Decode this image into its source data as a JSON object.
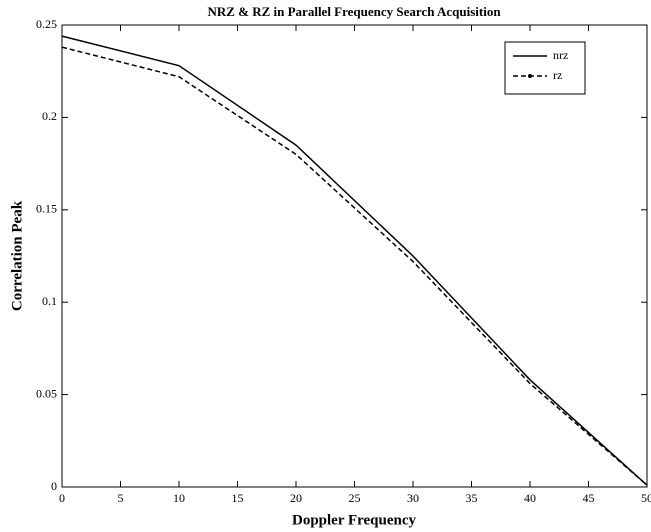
{
  "chart_data": {
    "type": "line",
    "title": "NRZ & RZ in Parallel Frequency Search Acquisition",
    "x_label": "Doppler Frequency",
    "y_label": "Correlation Peak",
    "x": [
      0,
      10,
      20,
      30,
      40,
      50
    ],
    "series": [
      {
        "name": "nrz",
        "color": "#000000",
        "linestyle": "solid",
        "values": [
          0.244,
          0.228,
          0.185,
          0.125,
          0.058,
          0.001
        ]
      },
      {
        "name": "rz",
        "color": "#000000",
        "linestyle": "dashed",
        "values": [
          0.238,
          0.222,
          0.18,
          0.122,
          0.056,
          0.001
        ]
      }
    ],
    "xlim": [
      0,
      50
    ],
    "xticks": [
      0,
      5,
      10,
      15,
      20,
      25,
      30,
      35,
      40,
      45,
      50
    ],
    "ylim": [
      0,
      0.25
    ],
    "yticks": [
      0,
      0.05,
      0.1,
      0.15,
      0.2,
      0.25
    ],
    "grid": false,
    "legend": "northeast"
  }
}
